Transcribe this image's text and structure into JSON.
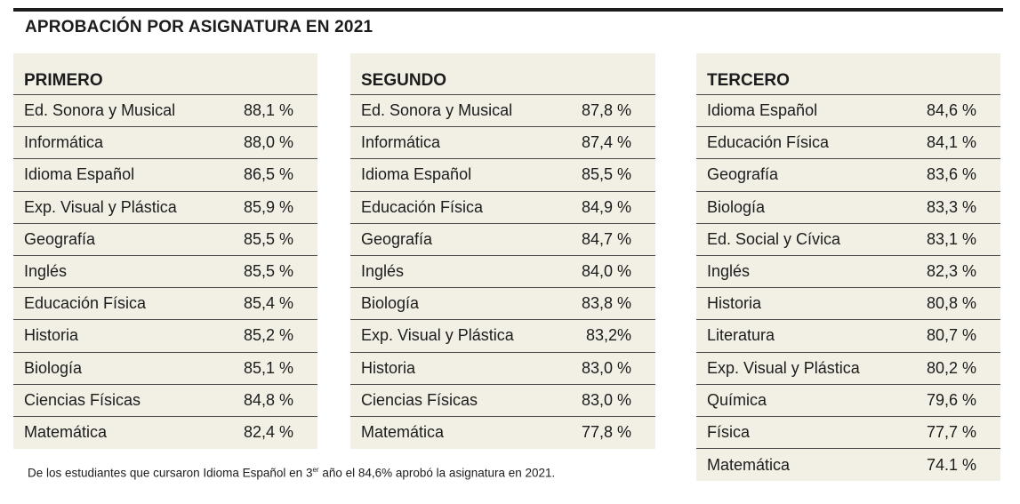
{
  "title": "APROBACIÓN POR ASIGNATURA EN 2021",
  "panels": [
    {
      "header": "PRIMERO",
      "rows": [
        {
          "subject": "Ed. Sonora y Musical",
          "value": "88,1 %"
        },
        {
          "subject": "Informática",
          "value": "88,0 %"
        },
        {
          "subject": "Idioma Español",
          "value": "86,5 %"
        },
        {
          "subject": "Exp. Visual y Plástica",
          "value": "85,9 %"
        },
        {
          "subject": "Geografía",
          "value": "85,5 %"
        },
        {
          "subject": "Inglés",
          "value": "85,5 %"
        },
        {
          "subject": "Educación Física",
          "value": "85,4 %"
        },
        {
          "subject": "Historia",
          "value": "85,2 %"
        },
        {
          "subject": "Biología",
          "value": "85,1 %"
        },
        {
          "subject": "Ciencias Físicas",
          "value": "84,8 %"
        },
        {
          "subject": "Matemática",
          "value": "82,4 %"
        }
      ]
    },
    {
      "header": "SEGUNDO",
      "rows": [
        {
          "subject": "Ed. Sonora y Musical",
          "value": "87,8 %"
        },
        {
          "subject": "Informática",
          "value": "87,4 %"
        },
        {
          "subject": "Idioma Español",
          "value": "85,5 %"
        },
        {
          "subject": "Educación Física",
          "value": "84,9 %"
        },
        {
          "subject": "Geografía",
          "value": "84,7 %"
        },
        {
          "subject": "Inglés",
          "value": "84,0 %"
        },
        {
          "subject": "Biología",
          "value": "83,8 %"
        },
        {
          "subject": "Exp. Visual y Plástica",
          "value": "83,2%"
        },
        {
          "subject": "Historia",
          "value": "83,0 %"
        },
        {
          "subject": "Ciencias Físicas",
          "value": "83,0 %"
        },
        {
          "subject": "Matemática",
          "value": "77,8 %"
        }
      ]
    },
    {
      "header": "TERCERO",
      "rows": [
        {
          "subject": "Idioma Español",
          "value": "84,6 %"
        },
        {
          "subject": "Educación Física",
          "value": "84,1 %"
        },
        {
          "subject": "Geografía",
          "value": "83,6 %"
        },
        {
          "subject": "Biología",
          "value": "83,3 %"
        },
        {
          "subject": "Ed. Social y Cívica",
          "value": "83,1 %"
        },
        {
          "subject": "Inglés",
          "value": "82,3 %"
        },
        {
          "subject": "Historia",
          "value": "80,8 %"
        },
        {
          "subject": "Literatura",
          "value": "80,7 %"
        },
        {
          "subject": "Exp. Visual y Plástica",
          "value": "80,2 %"
        },
        {
          "subject": "Química",
          "value": "79,6 %"
        },
        {
          "subject": "Física",
          "value": "77,7 %"
        },
        {
          "subject": "Matemática",
          "value": "74.1 %"
        }
      ]
    }
  ],
  "note": {
    "before": "De los estudiantes que cursaron Idioma Español en 3",
    "sup": "er",
    "after": " año el 84,6% aprobó la asignatura en 2021."
  }
}
